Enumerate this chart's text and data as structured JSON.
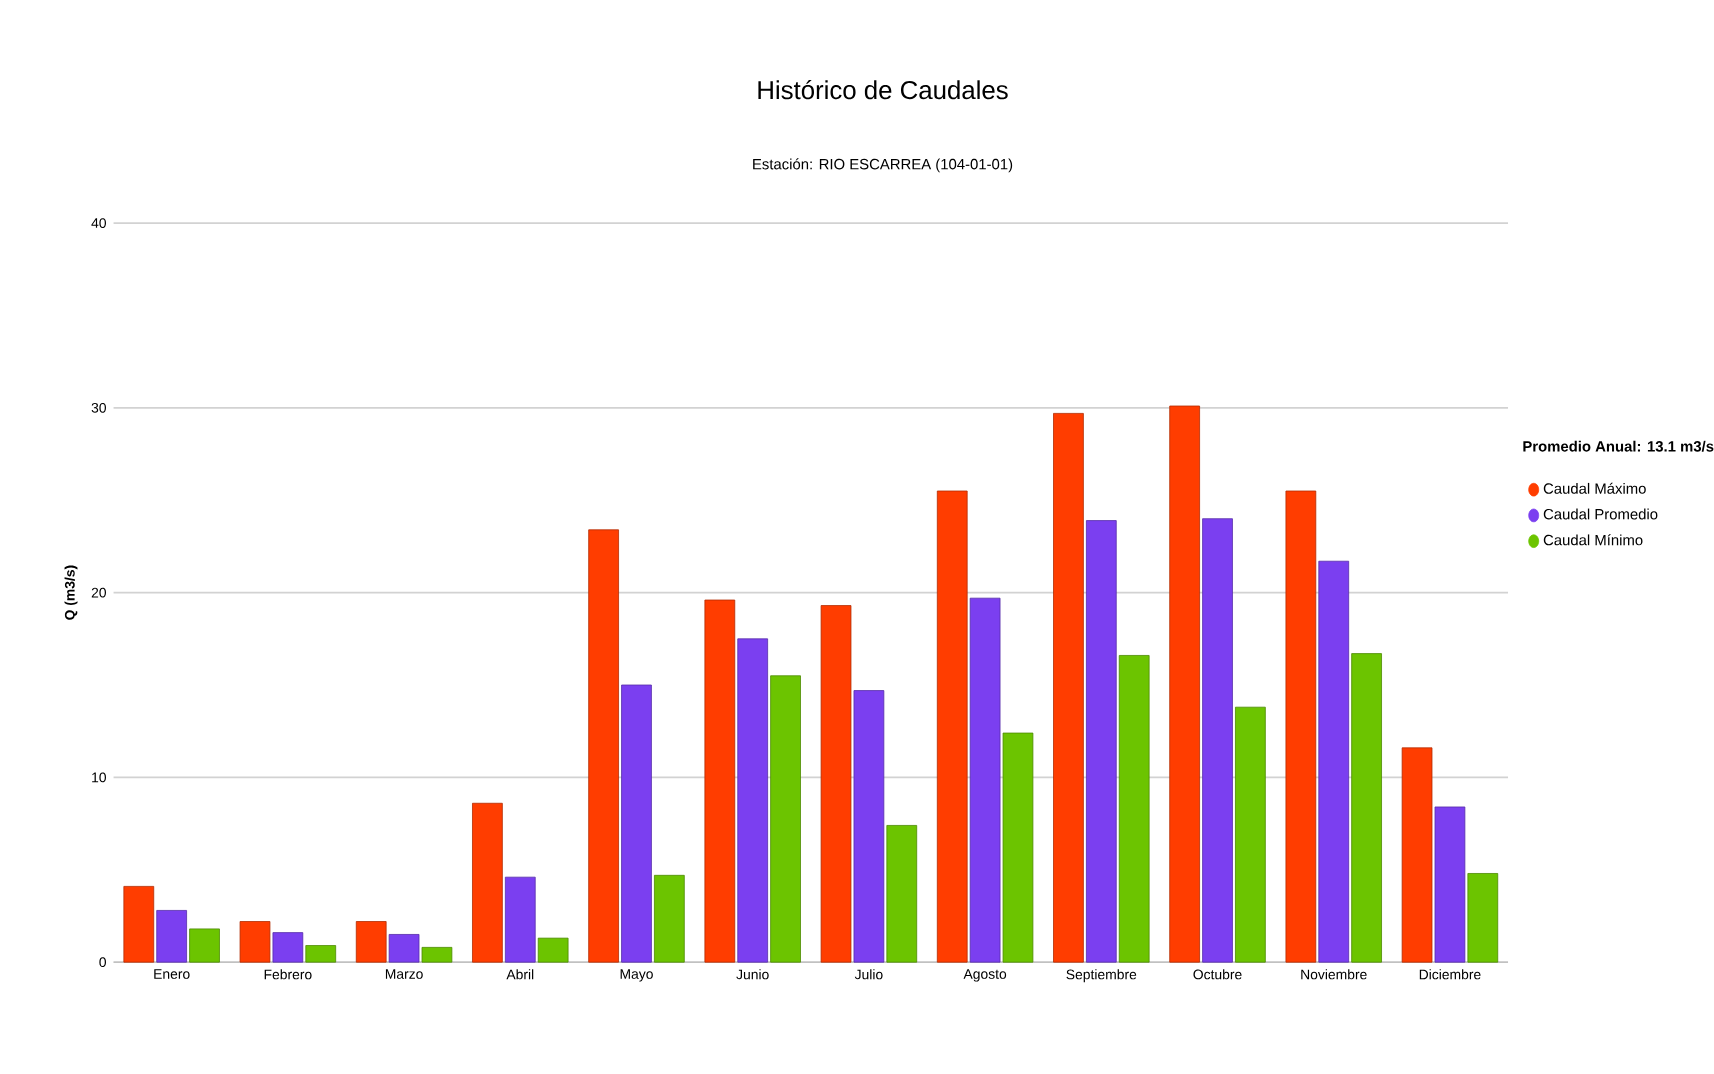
{
  "chart_data": {
    "type": "bar",
    "title": "Histórico de Caudales",
    "subtitle": "Estación: RIO ESCARREA (104-01-01)",
    "ylabel": "Q (m3/s)",
    "legend_title": "Promedio Anual: 13.1 m3/s",
    "categories": [
      "Enero",
      "Febrero",
      "Marzo",
      "Abril",
      "Mayo",
      "Junio",
      "Julio",
      "Agosto",
      "Septiembre",
      "Octubre",
      "Noviembre",
      "Diciembre"
    ],
    "series": [
      {
        "name": "Caudal Máximo",
        "color": "#ff3d00",
        "values": [
          4.1,
          2.2,
          2.2,
          8.6,
          23.4,
          19.6,
          19.3,
          25.5,
          29.7,
          30.1,
          25.5,
          11.6
        ]
      },
      {
        "name": "Caudal Promedio",
        "color": "#7b3ff0",
        "values": [
          2.8,
          1.6,
          1.5,
          4.6,
          15.0,
          17.5,
          14.7,
          19.7,
          23.9,
          24.0,
          21.7,
          8.4
        ]
      },
      {
        "name": "Caudal Mínimo",
        "color": "#6cc400",
        "values": [
          1.8,
          0.9,
          0.8,
          1.3,
          4.7,
          15.5,
          7.4,
          12.4,
          16.6,
          13.8,
          16.7,
          4.8
        ]
      }
    ],
    "ylim": [
      0,
      40
    ],
    "yticks": [
      0,
      10,
      20,
      30,
      40
    ],
    "grid": "y",
    "legend": "right",
    "marker": "circle"
  }
}
